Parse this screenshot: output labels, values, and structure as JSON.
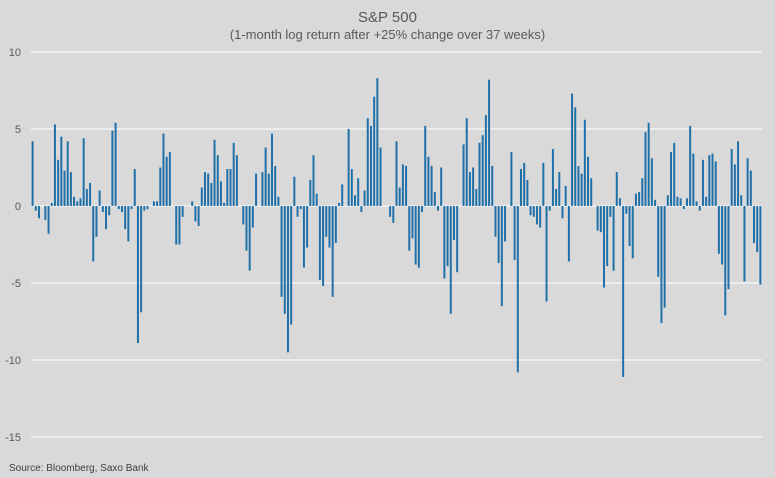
{
  "chart_data": {
    "type": "bar",
    "title": "S&P 500",
    "subtitle": "(1-month log return after +25% change over 37 weeks)",
    "xlabel": "",
    "ylabel": "",
    "ylim": [
      -15,
      10
    ],
    "yticks": [
      10,
      5,
      0,
      -5,
      -10,
      -15
    ],
    "grid": true,
    "legend": "none",
    "series_color": "#1f6fa8",
    "values": [
      4.2,
      -0.3,
      -0.8,
      0,
      -0.9,
      -1.8,
      0.2,
      5.3,
      3.0,
      4.5,
      2.3,
      4.2,
      2.2,
      0.6,
      0.3,
      0.5,
      4.4,
      1.1,
      1.5,
      -3.6,
      -2.0,
      1.0,
      -0.4,
      -1.5,
      -0.6,
      4.9,
      5.4,
      -0.2,
      -0.4,
      -1.5,
      -2.3,
      -0.2,
      2.4,
      -8.9,
      -6.9,
      -0.3,
      -0.2,
      0,
      0.3,
      0.3,
      2.5,
      4.7,
      3.2,
      3.5,
      0,
      -2.5,
      -2.5,
      -0.7,
      0,
      0,
      0.3,
      -1.0,
      -1.3,
      1.2,
      2.2,
      2.1,
      1.5,
      4.3,
      3.3,
      1.6,
      0.2,
      2.4,
      2.4,
      4.1,
      3.3,
      0,
      -1.2,
      -2.9,
      -4.2,
      -1.4,
      2.1,
      0,
      2.2,
      3.8,
      2.1,
      4.7,
      2.6,
      0.6,
      -5.9,
      -7.0,
      -9.5,
      -7.7,
      1.9,
      -0.7,
      -0.2,
      -4.0,
      -2.7,
      1.7,
      3.3,
      0.8,
      -4.8,
      -5.2,
      -2.0,
      -2.7,
      -5.9,
      -2.4,
      0.2,
      1.4,
      0,
      5.0,
      2.4,
      0.7,
      1.8,
      -0.4,
      1.0,
      5.7,
      5.2,
      7.1,
      8.3,
      3.8,
      0,
      0,
      -0.7,
      -1.1,
      4.2,
      1.2,
      2.7,
      2.6,
      -2.9,
      -2.1,
      -3.8,
      -4.0,
      -0.4,
      5.2,
      3.2,
      2.6,
      0.9,
      -0.3,
      2.5,
      -4.7,
      -3.9,
      -7.0,
      -2.2,
      -4.3,
      0,
      4.0,
      5.7,
      2.2,
      2.5,
      1.1,
      4.1,
      4.6,
      5.9,
      8.2,
      2.6,
      -2.0,
      -3.7,
      -6.5,
      -2.3,
      0,
      3.5,
      -3.5,
      -10.8,
      2.4,
      2.8,
      1.7,
      -0.6,
      -0.7,
      -1.2,
      -1.4,
      2.8,
      -6.2,
      -0.3,
      3.7,
      1.1,
      2.2,
      -0.8,
      1.3,
      -3.6,
      7.3,
      6.4,
      2.6,
      2.1,
      5.6,
      3.2,
      1.8,
      0,
      -1.6,
      -1.7,
      -5.3,
      -3.9,
      -0.7,
      -4.2,
      2.2,
      0.5,
      -11.1,
      -0.5,
      -2.6,
      -3.4,
      0.8,
      0.9,
      1.8,
      4.8,
      5.4,
      3.1,
      0.4,
      -4.6,
      -7.6,
      -6.6,
      0.7,
      3.5,
      4.1,
      0.6,
      0.5,
      -0.2,
      0.5,
      5.2,
      3.4,
      0.3,
      -0.3,
      3.0,
      0.6,
      3.3,
      3.4,
      2.9,
      -3.1,
      -3.8,
      -7.1,
      -5.4,
      3.7,
      2.7,
      4.2,
      0.7,
      -4.9,
      3.1,
      2.3,
      -2.4,
      -3.0,
      -5.1
    ]
  },
  "source": "Source: Bloomberg, Saxo Bank"
}
